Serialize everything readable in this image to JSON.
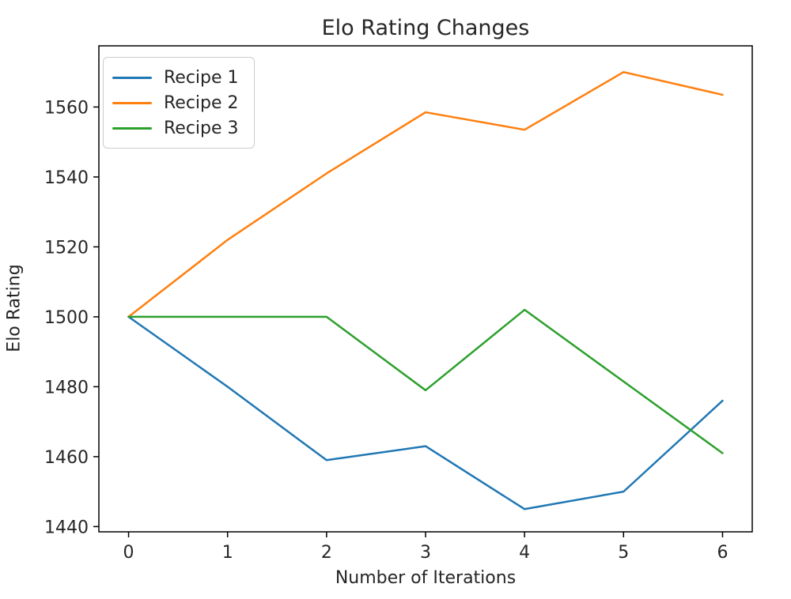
{
  "chart_data": {
    "type": "line",
    "title": "Elo Rating Changes",
    "xlabel": "Number of Iterations",
    "ylabel": "Elo Rating",
    "x": [
      0,
      1,
      2,
      3,
      4,
      5,
      6
    ],
    "series": [
      {
        "name": "Recipe 1",
        "color": "#1f77b4",
        "values": [
          1500,
          1480,
          1459,
          1463,
          1445,
          1450,
          1476
        ]
      },
      {
        "name": "Recipe 2",
        "color": "#ff7f0e",
        "values": [
          1500,
          1522,
          1541,
          1558.5,
          1553.5,
          1570,
          1563.5
        ]
      },
      {
        "name": "Recipe 3",
        "color": "#2ca02c",
        "values": [
          1500,
          1500,
          1500,
          1479,
          1502,
          1481.5,
          1461
        ]
      }
    ],
    "xticks": [
      0,
      1,
      2,
      3,
      4,
      5,
      6
    ],
    "yticks": [
      1440,
      1460,
      1480,
      1500,
      1520,
      1540,
      1560
    ],
    "xlim": [
      -0.3,
      6.3
    ],
    "ylim": [
      1438.5,
      1577.5
    ],
    "grid": false,
    "legend_position": "upper left",
    "line_width": 2.5,
    "spine_color": "#000000",
    "text_color": "#262626",
    "background": "#ffffff"
  }
}
